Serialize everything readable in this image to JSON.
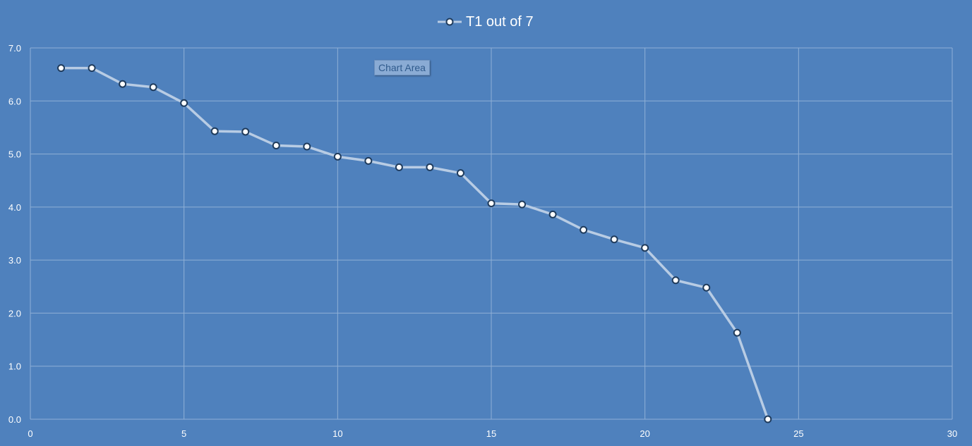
{
  "legend": {
    "label": "T1 out of 7"
  },
  "tooltip": {
    "label": "Chart Area"
  },
  "colors": {
    "background": "#4f81bd",
    "line": "#b8cce4",
    "marker_fill": "#ffffff",
    "gridline": "#8fb0d6",
    "text": "#ffffff"
  },
  "chart_data": {
    "type": "scatter",
    "title": "",
    "xlabel": "",
    "ylabel": "",
    "xlim": [
      0,
      30
    ],
    "ylim": [
      0.0,
      7.0
    ],
    "x_ticks": [
      "0",
      "5",
      "10",
      "15",
      "20",
      "25",
      "30"
    ],
    "y_ticks": [
      "0.0",
      "1.0",
      "2.0",
      "3.0",
      "4.0",
      "5.0",
      "6.0",
      "7.0"
    ],
    "grid": true,
    "legend_position": "top-center",
    "series": [
      {
        "name": "T1 out of 7",
        "x": [
          1,
          2,
          3,
          4,
          5,
          6,
          7,
          8,
          9,
          10,
          11,
          12,
          13,
          14,
          15,
          16,
          17,
          18,
          19,
          20,
          21,
          22,
          23,
          24
        ],
        "y": [
          6.62,
          6.62,
          6.32,
          6.26,
          5.96,
          5.43,
          5.42,
          5.16,
          5.14,
          4.95,
          4.87,
          4.75,
          4.75,
          4.64,
          4.07,
          4.05,
          3.86,
          3.57,
          3.39,
          3.23,
          2.62,
          2.48,
          1.63,
          0.0
        ]
      }
    ]
  }
}
